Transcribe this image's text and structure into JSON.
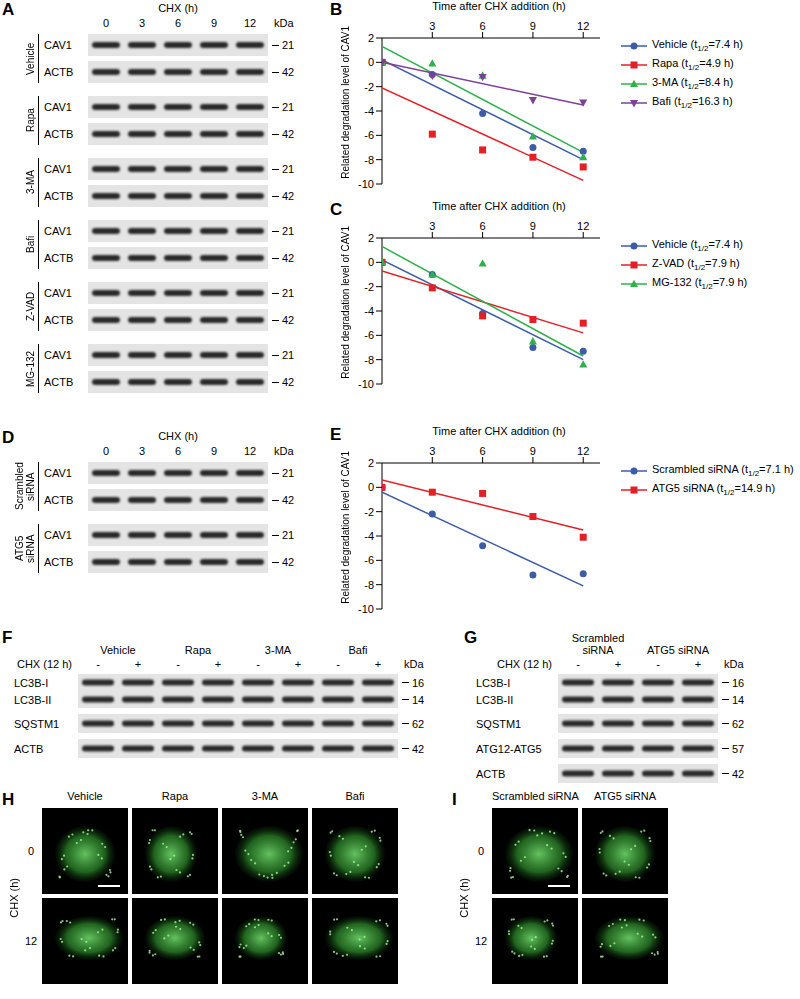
{
  "panel_labels": [
    "A",
    "B",
    "C",
    "D",
    "E",
    "F",
    "G",
    "H",
    "I"
  ],
  "time_blots": [
    {
      "header": "CHX (h)",
      "lanes": [
        0,
        3,
        6,
        9,
        12
      ],
      "unit": "kDa",
      "groups": [
        {
          "name": "Vehicle",
          "rows": [
            {
              "label": "CAV1",
              "kDa": 21
            },
            {
              "label": "ACTB",
              "kDa": 42
            }
          ]
        },
        {
          "name": "Rapa",
          "rows": [
            {
              "label": "CAV1",
              "kDa": 21
            },
            {
              "label": "ACTB",
              "kDa": 42
            }
          ]
        },
        {
          "name": "3-MA",
          "rows": [
            {
              "label": "CAV1",
              "kDa": 21
            },
            {
              "label": "ACTB",
              "kDa": 42
            }
          ]
        },
        {
          "name": "Bafi",
          "rows": [
            {
              "label": "CAV1",
              "kDa": 21
            },
            {
              "label": "ACTB",
              "kDa": 42
            }
          ]
        },
        {
          "name": "Z-VAD",
          "rows": [
            {
              "label": "CAV1",
              "kDa": 21
            },
            {
              "label": "ACTB",
              "kDa": 42
            }
          ]
        },
        {
          "name": "MG-132",
          "rows": [
            {
              "label": "CAV1",
              "kDa": 21
            },
            {
              "label": "ACTB",
              "kDa": 42
            }
          ]
        }
      ]
    },
    {
      "header": "CHX (h)",
      "lanes": [
        0,
        3,
        6,
        9,
        12
      ],
      "unit": "kDa",
      "groups": [
        {
          "name": "Scrambled siRNA",
          "rows": [
            {
              "label": "CAV1",
              "kDa": 21
            },
            {
              "label": "ACTB",
              "kDa": 42
            }
          ]
        },
        {
          "name": "ATG5 siRNA",
          "rows": [
            {
              "label": "CAV1",
              "kDa": 21
            },
            {
              "label": "ACTB",
              "kDa": 42
            }
          ]
        }
      ]
    }
  ],
  "lane_blots": [
    {
      "header": "CHX (12 h)",
      "unit": "kDa",
      "groups": [
        "Vehicle",
        "Rapa",
        "3-MA",
        "Bafi"
      ],
      "lanes": [
        "-",
        "+"
      ],
      "strips": [
        [
          {
            "label": "LC3B-I",
            "kDa": 16
          },
          {
            "label": "LC3B-II",
            "kDa": 14
          }
        ],
        [
          {
            "label": "SQSTM1",
            "kDa": 62
          }
        ],
        [
          {
            "label": "ACTB",
            "kDa": 42
          }
        ]
      ]
    },
    {
      "header": "CHX (12 h)",
      "unit": "kDa",
      "groups": [
        "Scrambled siRNA",
        "ATG5 siRNA"
      ],
      "lanes": [
        "-",
        "+"
      ],
      "strips": [
        [
          {
            "label": "LC3B-I",
            "kDa": 16
          },
          {
            "label": "LC3B-II",
            "kDa": 14
          }
        ],
        [
          {
            "label": "SQSTM1",
            "kDa": 62
          }
        ],
        [
          {
            "label": "ATG12-ATG5",
            "kDa": 57
          }
        ],
        [
          {
            "label": "ACTB",
            "kDa": 42
          }
        ]
      ]
    }
  ],
  "images": [
    {
      "row_title": "CHX (h)",
      "rows": [
        0,
        12
      ],
      "columns": [
        "Vehicle",
        "Rapa",
        "3-MA",
        "Bafi"
      ]
    },
    {
      "row_title": "CHX (h)",
      "rows": [
        0,
        12
      ],
      "columns": [
        "Scrambled siRNA",
        "ATG5 siRNA"
      ]
    }
  ],
  "chart_data": [
    {
      "type": "scatter",
      "x_label": "Time after CHX addition (h)",
      "y_label": "Related degradation level of CAV1",
      "xlim": [
        0,
        13
      ],
      "xticks": [
        3,
        6,
        9,
        12
      ],
      "ylim": [
        -10,
        2
      ],
      "yticks": [
        -10,
        -8,
        -6,
        -4,
        -2,
        0,
        2
      ],
      "grid": false,
      "legend": "right",
      "x": [
        0,
        3,
        6,
        9,
        12
      ],
      "fit_x": [
        0,
        12
      ],
      "series": [
        {
          "name": "Vehicle (t1/2=7.4 h)",
          "color": "#3c5ca8",
          "marker": "circle",
          "values": [
            0,
            -1,
            -4.2,
            -7,
            -7.3
          ],
          "fit": [
            0.2,
            -8.0
          ]
        },
        {
          "name": "Rapa (t1/2=4.9 h)",
          "color": "#e41f26",
          "marker": "square",
          "values": [
            0,
            -5.9,
            -7.2,
            -7.8,
            -8.6
          ],
          "fit": [
            -2.1,
            -9.7
          ]
        },
        {
          "name": "3-MA (t1/2=8.4 h)",
          "color": "#2eb04b",
          "marker": "triangle",
          "values": [
            0,
            -0.1,
            -1.1,
            -6.1,
            -7.8
          ],
          "fit": [
            1.3,
            -7.4
          ]
        },
        {
          "name": "Bafi (t1/2=16.3 h)",
          "color": "#7e3f98",
          "marker": "triangle-down",
          "values": [
            0,
            -1.1,
            -1.2,
            -3.1,
            -3.3
          ],
          "fit": [
            0,
            -3.5
          ]
        }
      ]
    },
    {
      "type": "scatter",
      "x_label": "Time after CHX addition (h)",
      "y_label": "Related degradation level of CAV1",
      "xlim": [
        0,
        13
      ],
      "xticks": [
        3,
        6,
        9,
        12
      ],
      "ylim": [
        -10,
        2
      ],
      "yticks": [
        -10,
        -8,
        -6,
        -4,
        -2,
        0,
        2
      ],
      "grid": false,
      "legend": "right",
      "x": [
        0,
        3,
        6,
        9,
        12
      ],
      "fit_x": [
        0,
        12
      ],
      "series": [
        {
          "name": "Vehicle (t1/2=7.4 h)",
          "color": "#3c5ca8",
          "marker": "circle",
          "values": [
            0,
            -1,
            -4.2,
            -7,
            -7.3
          ],
          "fit": [
            0.2,
            -8.0
          ]
        },
        {
          "name": "Z-VAD (t1/2=7.9 h)",
          "color": "#e41f26",
          "marker": "square",
          "values": [
            0,
            -2.1,
            -4.4,
            -4.7,
            -5.0
          ],
          "fit": [
            -0.7,
            -5.8
          ]
        },
        {
          "name": "MG-132 (t1/2=7.9 h)",
          "color": "#2eb04b",
          "marker": "triangle",
          "values": [
            0,
            -1.0,
            -0.1,
            -6.5,
            -8.4
          ],
          "fit": [
            1.3,
            -7.7
          ]
        }
      ]
    },
    {
      "type": "scatter",
      "x_label": "Time after CHX addition (h)",
      "y_label": "Related degradation level of CAV1",
      "xlim": [
        0,
        13
      ],
      "xticks": [
        3,
        6,
        9,
        12
      ],
      "ylim": [
        -10,
        2
      ],
      "yticks": [
        -10,
        -8,
        -6,
        -4,
        -2,
        0,
        2
      ],
      "grid": false,
      "legend": "right",
      "x": [
        0,
        3,
        6,
        9,
        12
      ],
      "fit_x": [
        0,
        12
      ],
      "series": [
        {
          "name": "Scrambled siRNA (t1/2=7.1 h)",
          "color": "#3c5ca8",
          "marker": "circle",
          "values": [
            0,
            -2.2,
            -4.8,
            -7.2,
            -7.1
          ],
          "fit": [
            -0.4,
            -8.1
          ]
        },
        {
          "name": "ATG5 siRNA (t1/2=14.9 h)",
          "color": "#e41f26",
          "marker": "square",
          "values": [
            0,
            -0.4,
            -0.5,
            -2.4,
            -4.1
          ],
          "fit": [
            0.6,
            -3.5
          ]
        }
      ]
    }
  ]
}
